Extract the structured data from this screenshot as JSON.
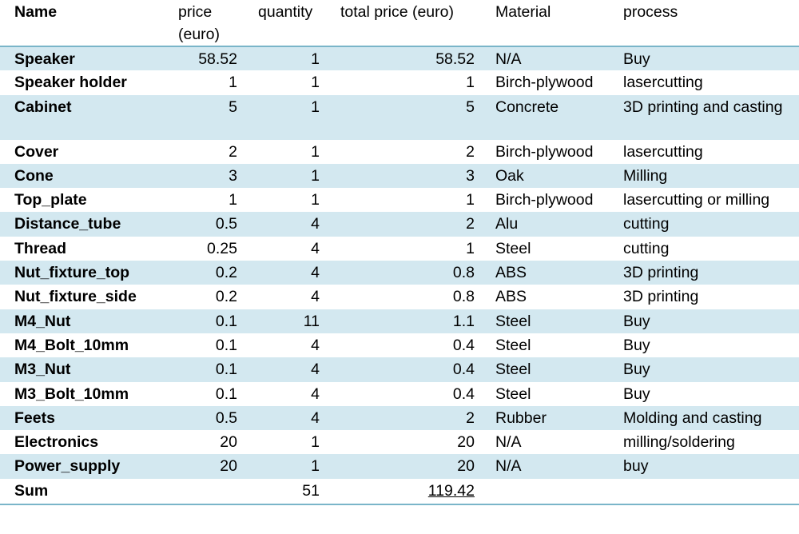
{
  "headers": {
    "name": "Name",
    "price": "price (euro)",
    "quantity": "quantity",
    "total": "total price (euro)",
    "material": "Material",
    "process": "process"
  },
  "rows": [
    {
      "name": "Speaker",
      "price": "58.52",
      "quantity": "1",
      "total": "58.52",
      "material": "N/A",
      "process": "Buy"
    },
    {
      "name": "Speaker holder",
      "price": "1",
      "quantity": "1",
      "total": "1",
      "material": "Birch-plywood",
      "process": "lasercutting"
    },
    {
      "name": "Cabinet",
      "price": "5",
      "quantity": "1",
      "total": "5",
      "material": "Concrete",
      "process": "3D printing and casting"
    },
    {
      "name": "Cover",
      "price": "2",
      "quantity": "1",
      "total": "2",
      "material": "Birch-plywood",
      "process": "lasercutting"
    },
    {
      "name": "Cone",
      "price": "3",
      "quantity": "1",
      "total": "3",
      "material": "Oak",
      "process": "Milling"
    },
    {
      "name": "Top_plate",
      "price": "1",
      "quantity": "1",
      "total": "1",
      "material": "Birch-plywood",
      "process": "lasercutting or milling"
    },
    {
      "name": "Distance_tube",
      "price": "0.5",
      "quantity": "4",
      "total": "2",
      "material": "Alu",
      "process": "cutting"
    },
    {
      "name": "Thread",
      "price": "0.25",
      "quantity": "4",
      "total": "1",
      "material": "Steel",
      "process": "cutting"
    },
    {
      "name": "Nut_fixture_top",
      "price": "0.2",
      "quantity": "4",
      "total": "0.8",
      "material": "ABS",
      "process": "3D printing"
    },
    {
      "name": "Nut_fixture_side",
      "price": "0.2",
      "quantity": "4",
      "total": "0.8",
      "material": "ABS",
      "process": "3D printing"
    },
    {
      "name": "M4_Nut",
      "price": "0.1",
      "quantity": "11",
      "total": "1.1",
      "material": "Steel",
      "process": "Buy"
    },
    {
      "name": "M4_Bolt_10mm",
      "price": "0.1",
      "quantity": "4",
      "total": "0.4",
      "material": "Steel",
      "process": "Buy"
    },
    {
      "name": "M3_Nut",
      "price": "0.1",
      "quantity": "4",
      "total": "0.4",
      "material": "Steel",
      "process": "Buy"
    },
    {
      "name": "M3_Bolt_10mm",
      "price": "0.1",
      "quantity": "4",
      "total": "0.4",
      "material": "Steel",
      "process": "Buy"
    },
    {
      "name": "Feets",
      "price": "0.5",
      "quantity": "4",
      "total": "2",
      "material": "Rubber",
      "process": "Molding and casting"
    },
    {
      "name": "Electronics",
      "price": "20",
      "quantity": "1",
      "total": "20",
      "material": "N/A",
      "process": "milling/soldering"
    },
    {
      "name": "Power_supply",
      "price": "20",
      "quantity": "1",
      "total": "20",
      "material": "N/A",
      "process": "buy"
    }
  ],
  "sum": {
    "label": "Sum",
    "quantity": "51",
    "total": "119.42"
  },
  "colors": {
    "band": "#d3e8f0",
    "rule": "#7ab5c9"
  }
}
